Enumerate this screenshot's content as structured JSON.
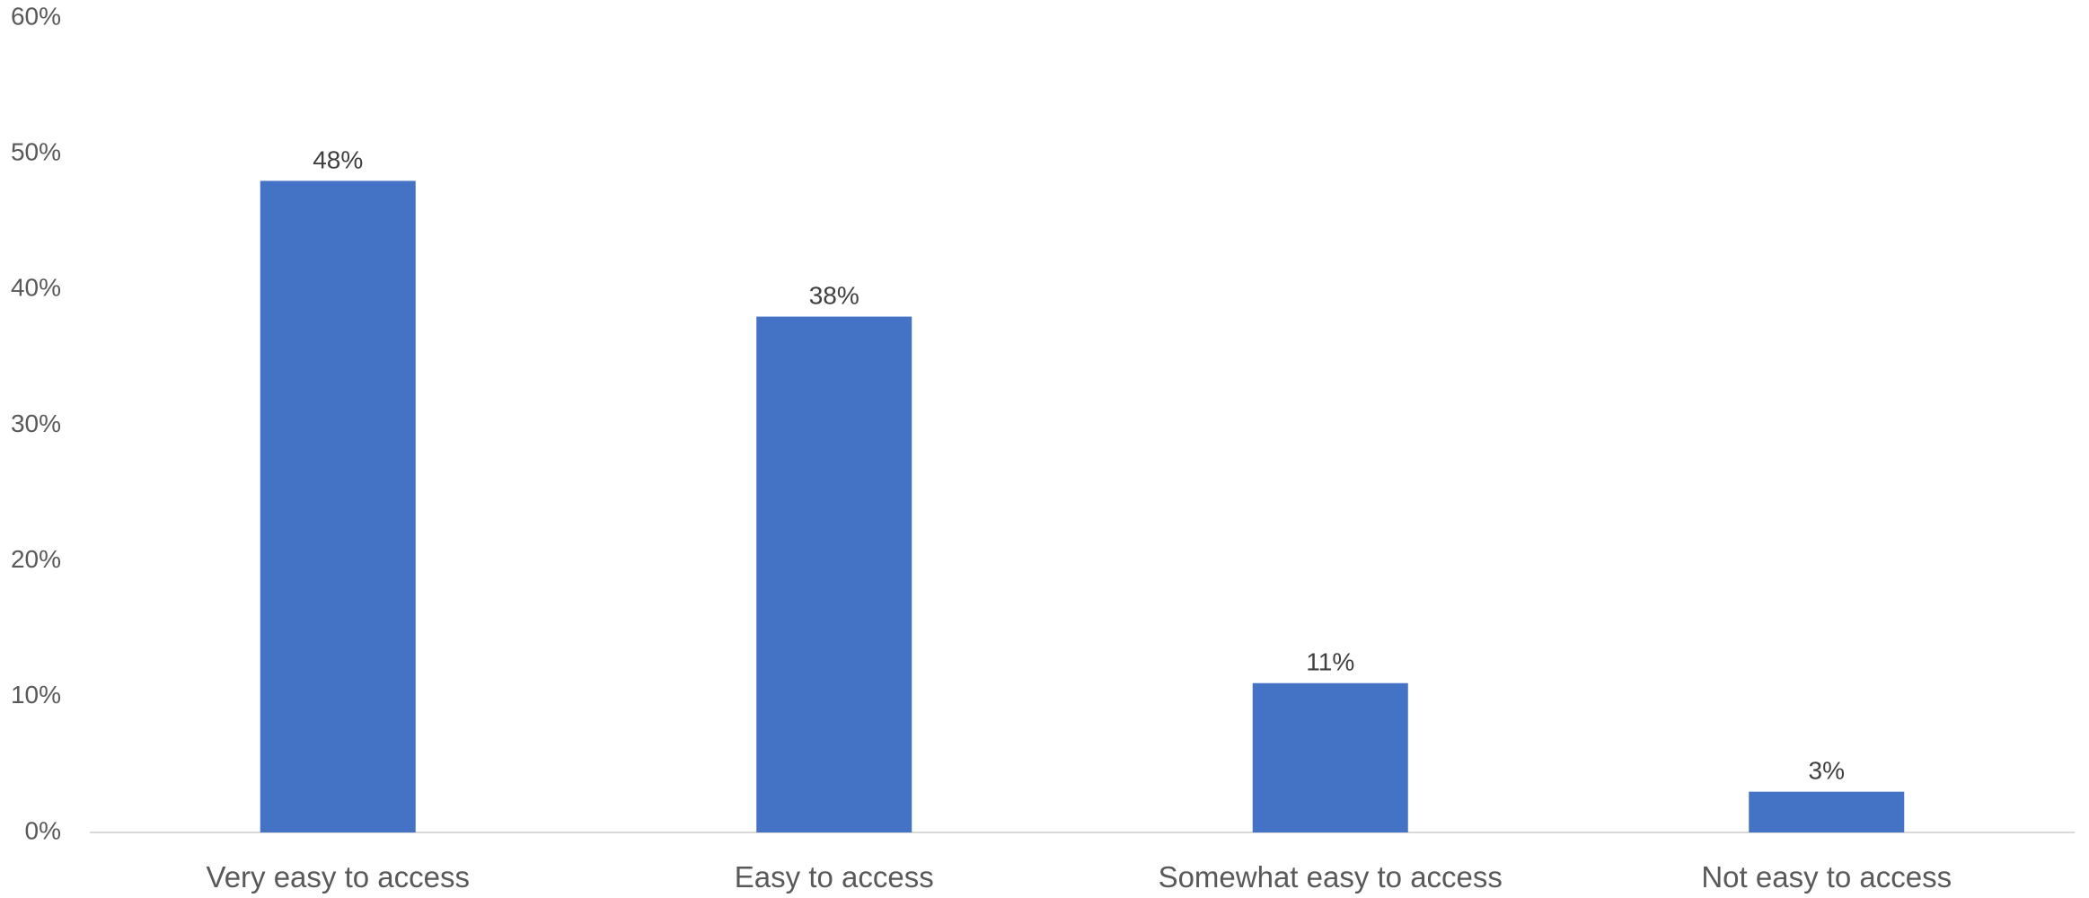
{
  "chart_data": {
    "type": "bar",
    "title": "",
    "xlabel": "",
    "ylabel": "",
    "categories": [
      "Very easy to access",
      "Easy to access",
      "Somewhat easy to access",
      "Not easy to access"
    ],
    "values": [
      48,
      38,
      11,
      3
    ],
    "data_labels": [
      "48%",
      "38%",
      "11%",
      "3%"
    ],
    "ylim": [
      0,
      60
    ],
    "yticks": [
      0,
      10,
      20,
      30,
      40,
      50,
      60
    ],
    "ytick_labels": [
      "0%",
      "10%",
      "20%",
      "30%",
      "40%",
      "50%",
      "60%"
    ],
    "grid": false,
    "legend": "none",
    "colors": {
      "bar": "#4472C4",
      "axis": "#D9D9D9",
      "tick_text": "#595959",
      "label_text": "#404040"
    }
  }
}
